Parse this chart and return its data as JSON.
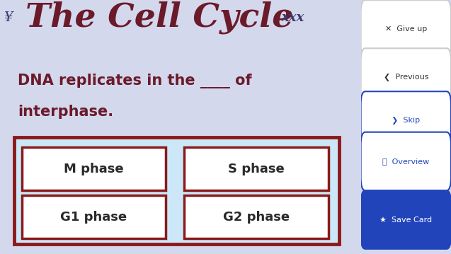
{
  "bg_color": "#d4d8ed",
  "title": "The Cell Cycle",
  "title_color": "#6b1a2a",
  "title_fontsize": 34,
  "chrom_color": "#3a3a6a",
  "question_line1": "DNA replicates in the ____ of",
  "question_line2": "interphase.",
  "question_color": "#6b1a2a",
  "question_fontsize": 15,
  "answer_options": [
    "M phase",
    "S phase",
    "G1 phase",
    "G2 phase"
  ],
  "answer_box_bg": "#cce8f8",
  "answer_inner_bg": "#ffffff",
  "answer_box_border": "#8b1a1a",
  "answer_text_color": "#2a2a2a",
  "answer_fontsize": 13,
  "outer_box_color": "#8b1a1a",
  "btn_labels": [
    "x  Give up",
    "<  Previous",
    ">  Skip",
    "Q  Overview",
    "* Save Card"
  ],
  "btn_colors": [
    "#ffffff",
    "#ffffff",
    "#ffffff",
    "#ffffff",
    "#2244bb"
  ],
  "btn_text_colors": [
    "#333333",
    "#333333",
    "#2244bb",
    "#2244bb",
    "#ffffff"
  ],
  "btn_border_colors": [
    "#cccccc",
    "#cccccc",
    "#2244bb",
    "#2244bb",
    "#2244bb"
  ],
  "btn_fontsize": 8
}
